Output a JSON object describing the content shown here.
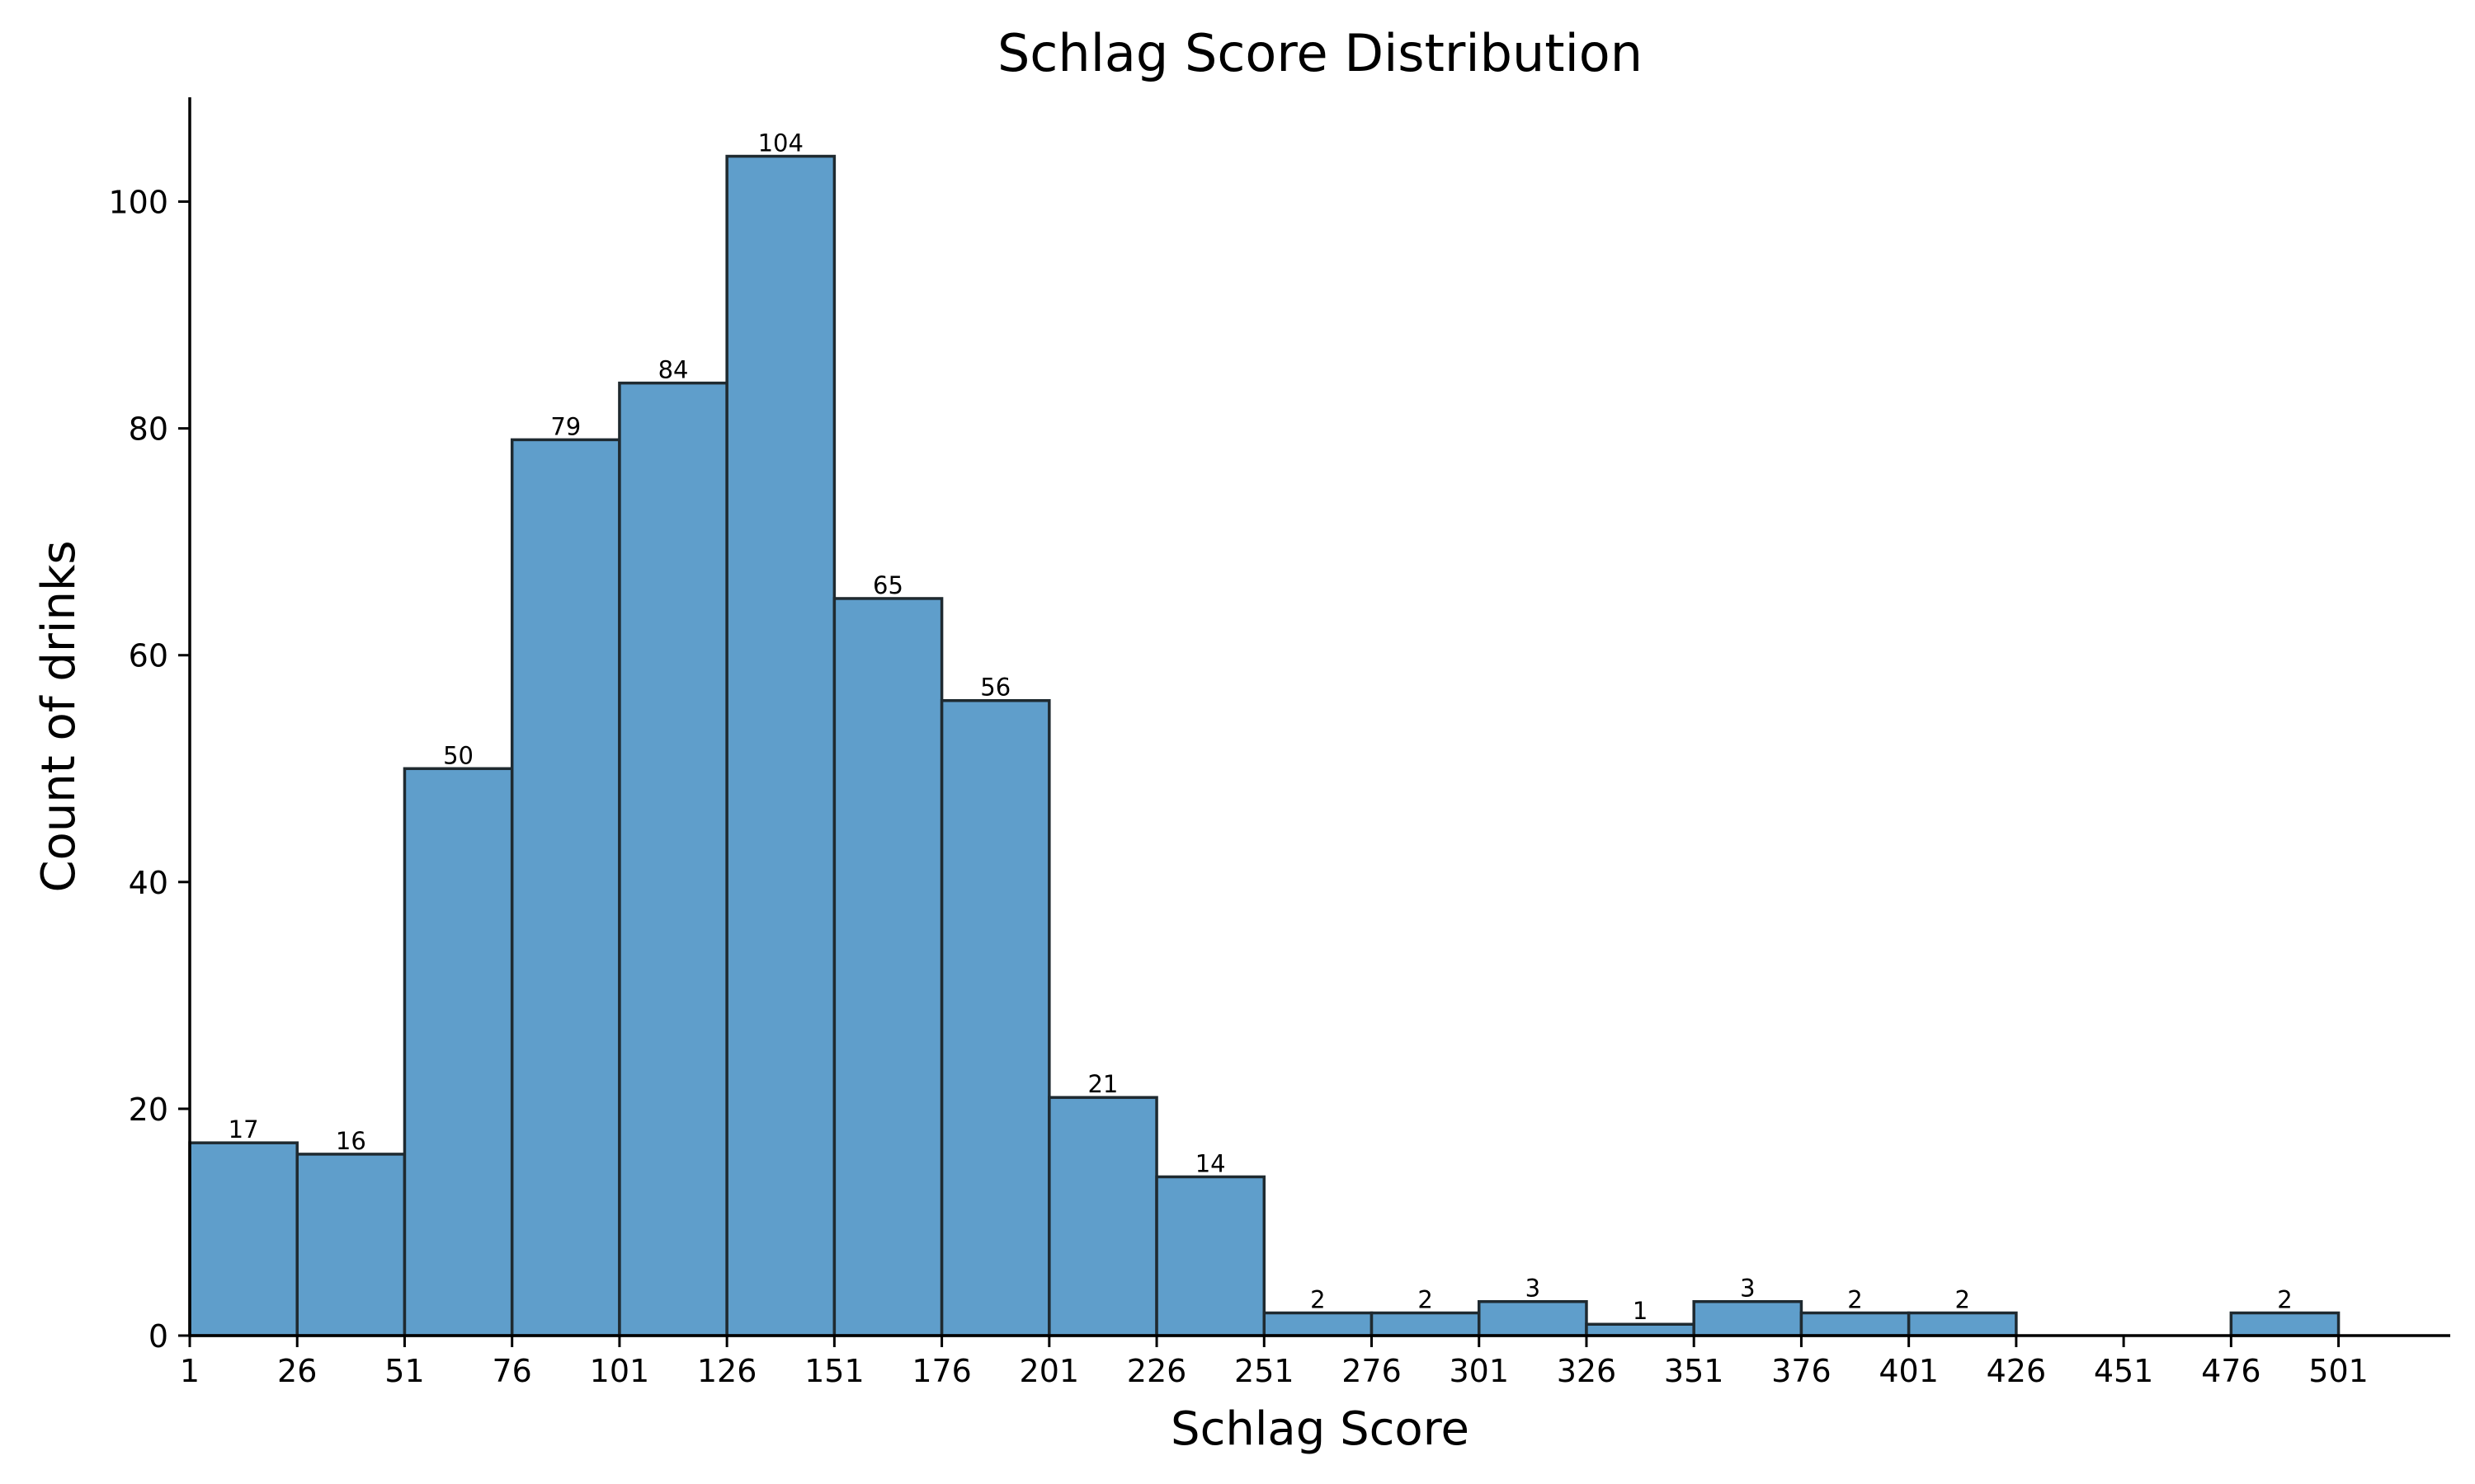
{
  "chart_data": {
    "type": "bar",
    "title": "Schlag Score Distribution",
    "xlabel": "Schlag Score",
    "ylabel": "Count of drinks",
    "bin_width": 25,
    "bin_starts": [
      1,
      26,
      51,
      76,
      101,
      126,
      151,
      176,
      201,
      226,
      251,
      276,
      301,
      326,
      351,
      376,
      401,
      426,
      451,
      476
    ],
    "values": [
      17,
      16,
      50,
      79,
      84,
      104,
      65,
      56,
      21,
      14,
      2,
      2,
      3,
      1,
      3,
      2,
      2,
      0,
      0,
      2
    ],
    "bar_labels": [
      "17",
      "16",
      "50",
      "79",
      "84",
      "104",
      "65",
      "56",
      "21",
      "14",
      "2",
      "2",
      "3",
      "1",
      "3",
      "2",
      "2",
      "",
      "",
      "2"
    ],
    "x_ticks": [
      "1",
      "26",
      "51",
      "76",
      "101",
      "126",
      "151",
      "176",
      "201",
      "226",
      "251",
      "276",
      "301",
      "326",
      "351",
      "376",
      "401",
      "426",
      "451",
      "476",
      "501"
    ],
    "y_ticks": [
      "0",
      "20",
      "40",
      "60",
      "80",
      "100"
    ],
    "xlim": [
      1,
      527
    ],
    "ylim": [
      0,
      109.2
    ],
    "bar_color": "#5f9ecb",
    "edge_color": "#1f2a30",
    "grid": false,
    "legend": "none"
  }
}
